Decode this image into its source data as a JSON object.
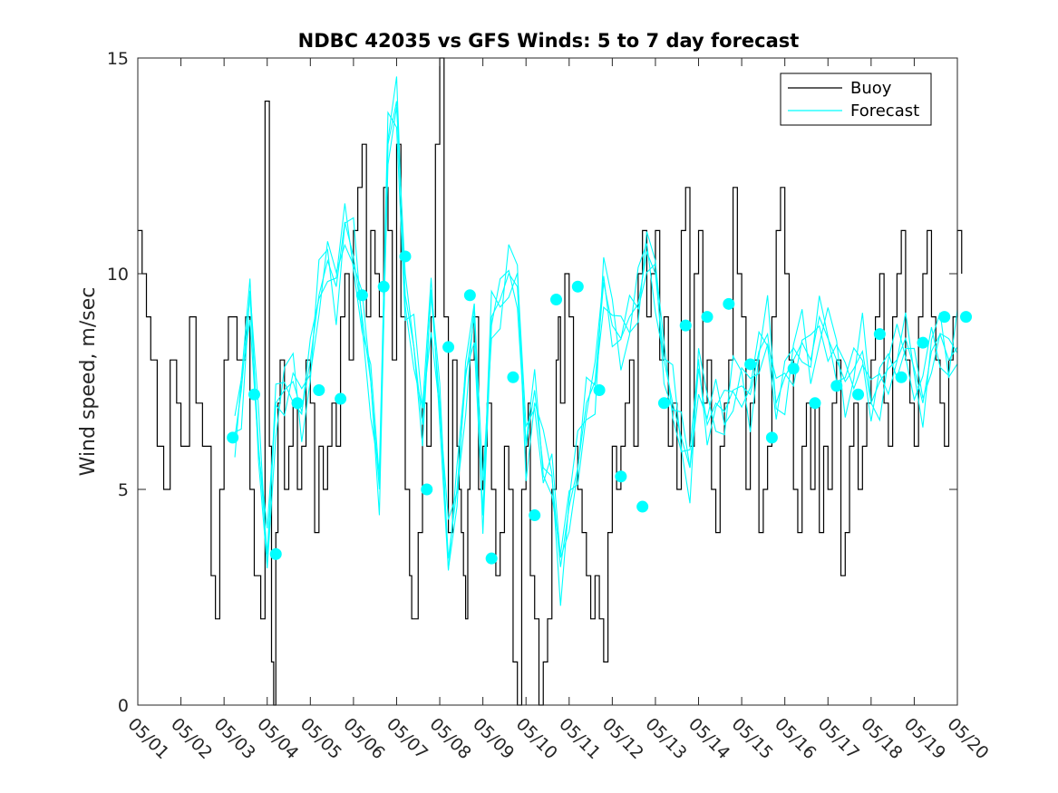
{
  "chart_data": {
    "type": "line",
    "title": "NDBC 42035 vs GFS Winds: 5 to 7 day forecast",
    "ylabel": "Wind speed, m/sec",
    "xlabel": "",
    "xlim": [
      "05/01",
      "05/20"
    ],
    "ylim": [
      0,
      15
    ],
    "yticks": [
      0,
      5,
      10,
      15
    ],
    "xticks": [
      "05/01",
      "05/02",
      "05/03",
      "05/04",
      "05/05",
      "05/06",
      "05/07",
      "05/08",
      "05/09",
      "05/10",
      "05/11",
      "05/12",
      "05/13",
      "05/14",
      "05/15",
      "05/16",
      "05/17",
      "05/18",
      "05/19",
      "05/20"
    ],
    "grid": false,
    "legend": {
      "position": "top-right",
      "entries": [
        "Buoy",
        "Forecast"
      ]
    },
    "colors": {
      "buoy": "#000000",
      "forecast": "#00ffff",
      "axes": "#262626"
    },
    "buoy": {
      "name": "Buoy",
      "x_days": [
        0.0,
        0.1,
        0.2,
        0.3,
        0.45,
        0.6,
        0.75,
        0.9,
        1.0,
        1.2,
        1.35,
        1.5,
        1.7,
        1.8,
        1.9,
        2.0,
        2.1,
        2.3,
        2.5,
        2.6,
        2.7,
        2.85,
        2.95,
        3.05,
        3.1,
        3.15,
        3.2,
        3.25,
        3.3,
        3.4,
        3.5,
        3.6,
        3.7,
        3.8,
        3.9,
        4.0,
        4.1,
        4.2,
        4.3,
        4.4,
        4.5,
        4.6,
        4.7,
        4.8,
        4.9,
        5.0,
        5.1,
        5.2,
        5.3,
        5.4,
        5.5,
        5.6,
        5.7,
        5.8,
        5.9,
        6.0,
        6.1,
        6.2,
        6.3,
        6.35,
        6.5,
        6.6,
        6.7,
        6.8,
        6.9,
        7.0,
        7.1,
        7.2,
        7.3,
        7.4,
        7.45,
        7.5,
        7.55,
        7.6,
        7.65,
        7.7,
        7.8,
        7.9,
        8.0,
        8.1,
        8.2,
        8.3,
        8.4,
        8.5,
        8.6,
        8.7,
        8.8,
        8.9,
        9.0,
        9.05,
        9.1,
        9.2,
        9.3,
        9.4,
        9.5,
        9.6,
        9.7,
        9.75,
        9.8,
        9.9,
        10.0,
        10.1,
        10.2,
        10.3,
        10.4,
        10.5,
        10.6,
        10.7,
        10.8,
        10.9,
        11.0,
        11.1,
        11.2,
        11.3,
        11.4,
        11.5,
        11.6,
        11.7,
        11.8,
        11.9,
        12.0,
        12.1,
        12.2,
        12.3,
        12.4,
        12.5,
        12.6,
        12.7,
        12.8,
        12.9,
        13.0,
        13.1,
        13.2,
        13.3,
        13.4,
        13.5,
        13.6,
        13.7,
        13.8,
        13.9,
        14.0,
        14.1,
        14.2,
        14.3,
        14.4,
        14.5,
        14.6,
        14.7,
        14.8,
        14.9,
        15.0,
        15.1,
        15.2,
        15.3,
        15.4,
        15.5,
        15.6,
        15.7,
        15.8,
        15.9,
        16.0,
        16.1,
        16.2,
        16.3,
        16.4,
        16.5,
        16.6,
        16.7,
        16.8,
        16.9,
        17.0,
        17.1,
        17.2,
        17.3,
        17.4,
        17.5,
        17.6,
        17.7,
        17.8,
        17.9,
        18.0,
        18.1,
        18.2,
        18.3,
        18.4,
        18.5,
        18.6,
        18.7,
        18.8,
        18.9,
        19.0,
        19.1
      ],
      "values": [
        11,
        10,
        9,
        8,
        6,
        5,
        8,
        7,
        6,
        9,
        7,
        6,
        3,
        2,
        5,
        8,
        9,
        8,
        9,
        5,
        3,
        2,
        14,
        6,
        1,
        0,
        4,
        7,
        8,
        5,
        6,
        7,
        5,
        6,
        8,
        7,
        4,
        6,
        5,
        6,
        7,
        6,
        9,
        10,
        8,
        11,
        12,
        13,
        9,
        11,
        10,
        9,
        12,
        11,
        8,
        13,
        9,
        5,
        3,
        2,
        4,
        7,
        6,
        9,
        13,
        15,
        9,
        4,
        8,
        6,
        5,
        4,
        3,
        2,
        5,
        8,
        9,
        5,
        6,
        7,
        5,
        3,
        4,
        6,
        5,
        1,
        0,
        5,
        6,
        7,
        3,
        2,
        0,
        1,
        2,
        5,
        8,
        9,
        7,
        10,
        9,
        6,
        5,
        4,
        3,
        2,
        3,
        2,
        1,
        4,
        6,
        5,
        6,
        7,
        8,
        6,
        10,
        11,
        9,
        10,
        11,
        8,
        9,
        6,
        7,
        5,
        11,
        12,
        6,
        10,
        11,
        7,
        8,
        5,
        4,
        6,
        7,
        8,
        12,
        10,
        9,
        5,
        7,
        8,
        4,
        5,
        6,
        9,
        11,
        12,
        10,
        8,
        5,
        4,
        6,
        7,
        5,
        7,
        4,
        6,
        5,
        7,
        8,
        3,
        4,
        6,
        7,
        5,
        6,
        7,
        8,
        9,
        10,
        7,
        6,
        9,
        10,
        11,
        8,
        7,
        6,
        9,
        10,
        11,
        9,
        8,
        7,
        6,
        8,
        9,
        11,
        10
      ]
    },
    "forecast": {
      "name": "Forecast",
      "x_days": [
        2.25,
        2.4,
        2.6,
        2.8,
        3.0,
        3.2,
        3.4,
        3.6,
        3.8,
        4.0,
        4.2,
        4.4,
        4.6,
        4.8,
        5.0,
        5.2,
        5.4,
        5.6,
        5.8,
        6.0,
        6.2,
        6.4,
        6.6,
        6.8,
        7.0,
        7.2,
        7.4,
        7.6,
        7.8,
        8.0,
        8.2,
        8.4,
        8.6,
        8.8,
        9.0,
        9.2,
        9.4,
        9.6,
        9.8,
        10.0,
        10.2,
        10.4,
        10.6,
        10.8,
        11.0,
        11.2,
        11.4,
        11.6,
        11.8,
        12.0,
        12.2,
        12.4,
        12.6,
        12.8,
        13.0,
        13.2,
        13.4,
        13.6,
        13.8,
        14.0,
        14.2,
        14.4,
        14.6,
        14.8,
        15.0,
        15.2,
        15.4,
        15.6,
        15.8,
        16.0,
        16.2,
        16.4,
        16.6,
        16.8,
        17.0,
        17.2,
        17.4,
        17.6,
        17.8,
        18.0,
        18.2,
        18.4,
        18.6,
        18.8,
        19.0
      ],
      "values": [
        6.2,
        7.3,
        9.5,
        6.0,
        3.5,
        7.0,
        7.3,
        7.5,
        6.8,
        8.0,
        9.5,
        10.3,
        9.7,
        11.2,
        10.4,
        9.0,
        7.5,
        5.0,
        13.0,
        14.0,
        9.5,
        8.3,
        6.5,
        9.5,
        7.0,
        3.4,
        5.0,
        7.6,
        9.0,
        4.4,
        9.0,
        9.4,
        10.0,
        9.7,
        6.0,
        7.3,
        5.5,
        5.3,
        3.2,
        4.6,
        5.5,
        7.0,
        7.5,
        9.8,
        8.8,
        8.5,
        9.0,
        9.3,
        10.5,
        10.0,
        8.0,
        7.0,
        6.2,
        5.5,
        7.8,
        6.5,
        7.0,
        6.8,
        7.3,
        7.4,
        7.2,
        8.2,
        8.6,
        7.0,
        7.6,
        8.0,
        8.4,
        8.0,
        9.0,
        8.5,
        8.0,
        7.5,
        7.8,
        8.2,
        7.0,
        7.5,
        7.8,
        8.0,
        8.5,
        7.8,
        7.0,
        8.2,
        8.6,
        8.0,
        8.3
      ],
      "markers_x_days": [
        2.2,
        2.7,
        3.2,
        3.7,
        4.2,
        4.7,
        5.2,
        5.7,
        6.2,
        6.7,
        7.2,
        7.7,
        8.2,
        8.7,
        9.2,
        9.7,
        10.2,
        10.7,
        11.2,
        11.7,
        12.2,
        12.7,
        13.2,
        13.7,
        14.2,
        14.7,
        15.2,
        15.7,
        16.2,
        16.7,
        17.2,
        17.7,
        18.2,
        18.7,
        19.2
      ],
      "markers_values": [
        6.2,
        7.2,
        3.5,
        7.0,
        7.3,
        7.1,
        9.5,
        9.7,
        10.4,
        5.0,
        8.3,
        9.5,
        3.4,
        7.6,
        4.4,
        9.4,
        9.7,
        7.3,
        5.3,
        4.6,
        7.0,
        8.8,
        9.0,
        9.3,
        7.9,
        6.2,
        7.8,
        7.0,
        7.4,
        7.2,
        8.6,
        7.6,
        8.4,
        9.0,
        9.0
      ]
    }
  }
}
